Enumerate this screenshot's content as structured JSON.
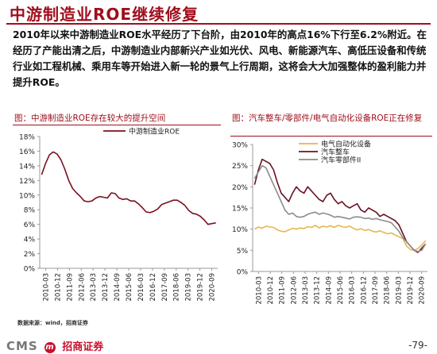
{
  "page": {
    "title": "中游制造业ROE继续修复",
    "intro": "2010年以来中游制造业ROE水平经历了下台阶，由2010年的高点16%下行至6.2%附近。在经历了产能出清之后，中游制造业内部新兴产业如光伏、风电、新能源汽车、高低压设备和传统行业如工程机械、乘用车等开始进入新一轮的景气上行周期，这将会大大加强整体的盈利能力并提升ROE。",
    "source": "数据来源：wind，招商证券",
    "logo_cms": "CMS",
    "logo_m": "m",
    "logo_brand": "招商证券",
    "page_number": "-79-"
  },
  "colors": {
    "accent": "#a00e1c",
    "series_main": "#7a1020",
    "series_elec": "#e6b74a",
    "series_vehicle": "#6b1222",
    "series_parts": "#8c8c8c"
  },
  "chart_data": [
    {
      "type": "line",
      "panel_title": "图：中游制造业ROE存在较大的提升空间",
      "x_ticks": [
        "2010-03",
        "2010-12",
        "2011-09",
        "2012-06",
        "2013-03",
        "2013-12",
        "2014-09",
        "2015-06",
        "2016-03",
        "2016-12",
        "2017-09",
        "2018-06",
        "2019-03",
        "2019-12",
        "2020-09"
      ],
      "y_ticks": [
        "0%",
        "2%",
        "4%",
        "6%",
        "8%",
        "10%",
        "12%",
        "14%",
        "16%",
        "18%"
      ],
      "ylim": [
        0,
        18
      ],
      "grid": false,
      "legend": "top",
      "series": [
        {
          "name": "中游制造业ROE",
          "color": "#7a1020",
          "values": [
            12.8,
            14.3,
            15.5,
            15.9,
            15.6,
            14.8,
            13.5,
            12.0,
            10.9,
            10.3,
            9.8,
            9.2,
            9.1,
            9.2,
            9.6,
            9.8,
            9.7,
            9.6,
            10.3,
            10.2,
            9.6,
            9.4,
            9.5,
            9.2,
            9.2,
            8.8,
            8.3,
            7.7,
            7.6,
            7.8,
            8.1,
            8.7,
            8.9,
            9.1,
            9.3,
            9.3,
            9.0,
            8.6,
            7.9,
            7.5,
            7.4,
            7.1,
            6.6,
            6.0,
            6.1,
            6.2
          ]
        }
      ]
    },
    {
      "type": "line",
      "panel_title": "图：汽车整车/零部件/电气自动化设备ROE正在修复",
      "x_ticks": [
        "2010-03",
        "2010-12",
        "2011-09",
        "2012-06",
        "2013-03",
        "2013-12",
        "2014-09",
        "2015-06",
        "2016-03",
        "2016-12",
        "2017-09",
        "2018-06",
        "2019-03",
        "2019-12",
        "2020-09"
      ],
      "y_ticks": [
        "0%",
        "5%",
        "10%",
        "15%",
        "20%",
        "25%",
        "30%"
      ],
      "ylim": [
        0,
        30
      ],
      "grid": false,
      "legend": "top",
      "series": [
        {
          "name": "电气自动化设备",
          "color": "#e6b74a",
          "values": [
            10.0,
            10.5,
            10.2,
            10.7,
            10.5,
            10.4,
            9.8,
            9.5,
            9.4,
            9.8,
            10.2,
            10.0,
            10.3,
            10.1,
            10.6,
            10.4,
            10.9,
            10.3,
            10.7,
            10.5,
            10.8,
            10.4,
            10.9,
            10.6,
            10.4,
            10.7,
            10.2,
            9.8,
            10.1,
            9.7,
            9.9,
            9.5,
            9.3,
            9.6,
            9.2,
            8.9,
            9.1,
            8.6,
            8.2,
            7.8,
            6.0,
            5.2,
            5.0,
            5.4,
            6.2,
            7.3
          ]
        },
        {
          "name": "汽车整车",
          "color": "#6b1222",
          "values": [
            20.5,
            24.0,
            26.5,
            26.0,
            25.5,
            24.0,
            21.0,
            18.5,
            17.5,
            16.5,
            18.5,
            20.0,
            19.0,
            18.5,
            20.0,
            19.0,
            18.0,
            17.0,
            16.5,
            18.0,
            18.5,
            17.0,
            16.0,
            16.5,
            15.5,
            15.0,
            15.5,
            16.0,
            14.5,
            14.0,
            15.0,
            14.5,
            14.0,
            13.0,
            13.5,
            13.0,
            12.5,
            12.0,
            11.0,
            9.0,
            7.0,
            6.0,
            5.0,
            4.5,
            5.5,
            6.5
          ]
        },
        {
          "name": "汽车零部件II",
          "color": "#8c8c8c",
          "values": [
            22.0,
            23.5,
            25.0,
            24.5,
            22.5,
            20.5,
            18.5,
            16.5,
            14.5,
            13.5,
            13.8,
            13.0,
            12.8,
            13.0,
            13.5,
            13.8,
            14.0,
            13.5,
            13.8,
            13.6,
            13.3,
            12.8,
            13.0,
            12.8,
            12.6,
            12.4,
            12.8,
            12.9,
            12.8,
            12.5,
            12.6,
            12.3,
            12.5,
            12.2,
            12.0,
            11.8,
            11.5,
            10.5,
            9.5,
            8.0,
            7.0,
            6.0,
            5.0,
            4.7,
            5.0,
            6.5
          ]
        }
      ]
    }
  ]
}
